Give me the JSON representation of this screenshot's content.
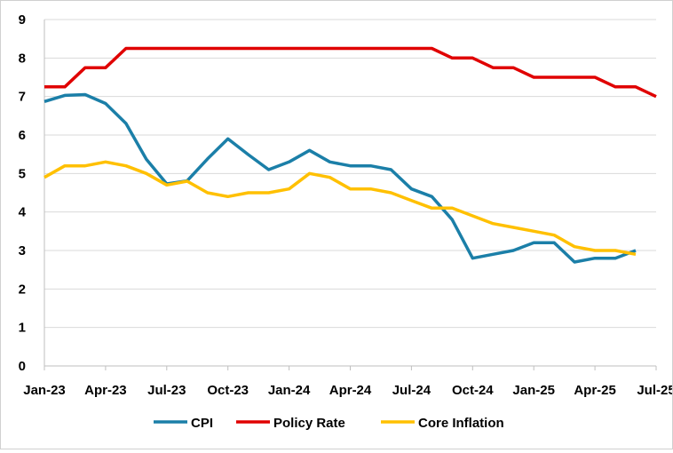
{
  "chart_data": {
    "type": "line",
    "title": "",
    "xlabel": "",
    "ylabel": "",
    "ylim": [
      0,
      9
    ],
    "y_ticks": [
      "0",
      "1",
      "2",
      "3",
      "4",
      "5",
      "6",
      "7",
      "8",
      "9"
    ],
    "x_ticks": [
      "Jan-23",
      "Apr-23",
      "Jul-23",
      "Oct-23",
      "Jan-24",
      "Apr-24",
      "Jul-24",
      "Oct-24",
      "Jan-25",
      "Apr-25",
      "Jul-25"
    ],
    "x_months": 31,
    "grid": "horizontal",
    "legend_position": "bottom",
    "series": [
      {
        "name": "CPI",
        "color": "#1b7fa8",
        "values": [
          6.87,
          7.03,
          7.05,
          6.82,
          6.3,
          5.37,
          4.73,
          4.81,
          5.38,
          5.9,
          5.49,
          5.1,
          5.3,
          5.6,
          5.3,
          5.2,
          5.2,
          5.1,
          4.6,
          4.4,
          3.8,
          2.8,
          2.9,
          3.0,
          3.2,
          3.2,
          2.7,
          2.8,
          2.8,
          3.0
        ]
      },
      {
        "name": "Policy Rate",
        "color": "#e00000",
        "values": [
          7.25,
          7.25,
          7.75,
          7.75,
          8.25,
          8.25,
          8.25,
          8.25,
          8.25,
          8.25,
          8.25,
          8.25,
          8.25,
          8.25,
          8.25,
          8.25,
          8.25,
          8.25,
          8.25,
          8.25,
          8.0,
          8.0,
          7.75,
          7.75,
          7.5,
          7.5,
          7.5,
          7.5,
          7.25,
          7.25,
          7.0
        ]
      },
      {
        "name": "Core Inflation",
        "color": "#ffc000",
        "values": [
          4.9,
          5.2,
          5.2,
          5.3,
          5.2,
          5.0,
          4.7,
          4.8,
          4.5,
          4.4,
          4.5,
          4.5,
          4.6,
          5.0,
          4.9,
          4.6,
          4.6,
          4.5,
          4.3,
          4.1,
          4.1,
          3.9,
          3.7,
          3.6,
          3.5,
          3.4,
          3.1,
          3.0,
          3.0,
          2.9
        ]
      }
    ]
  }
}
